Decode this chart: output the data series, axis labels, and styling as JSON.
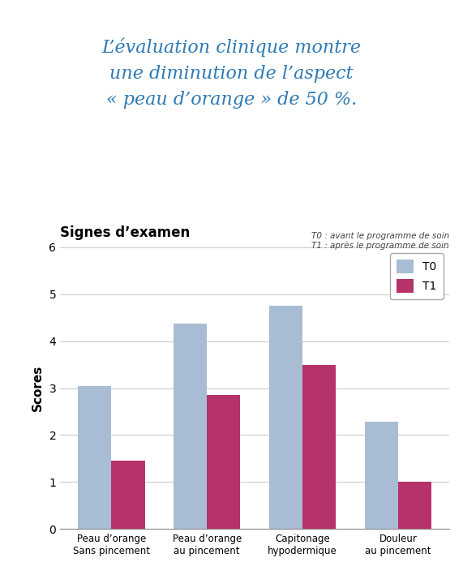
{
  "title_line1": "L’évaluation clinique montre",
  "title_line2": "une diminution de l’aspect",
  "title_line3": "« peau d’orange » de 50 %.",
  "subtitle_note": "T0 : avant le programme de soin\nT1 : après le programme de soin",
  "chart_title": "Signes d’examen",
  "ylabel": "Scores",
  "categories": [
    "Peau d’orange\nSans pincement",
    "Peau d’orange\nau pincement",
    "Capitonage\nhypodermique",
    "Douleur\nau pincement"
  ],
  "t0_values": [
    3.05,
    4.38,
    4.75,
    2.28
  ],
  "t1_values": [
    1.45,
    2.85,
    3.5,
    1.0
  ],
  "t0_color": "#a8bcd4",
  "t1_color": "#b5336a",
  "ylim": [
    0,
    6
  ],
  "yticks": [
    0,
    1,
    2,
    3,
    4,
    5,
    6
  ],
  "background_color": "#ffffff",
  "title_color": "#2e7ab5",
  "chart_title_color": "#000000",
  "note_color": "#444444",
  "bar_width": 0.35,
  "title_fontsize": 16,
  "note_fontsize": 7.5,
  "chart_title_fontsize": 12,
  "ylabel_fontsize": 11,
  "tick_fontsize": 8.5,
  "legend_fontsize": 10
}
